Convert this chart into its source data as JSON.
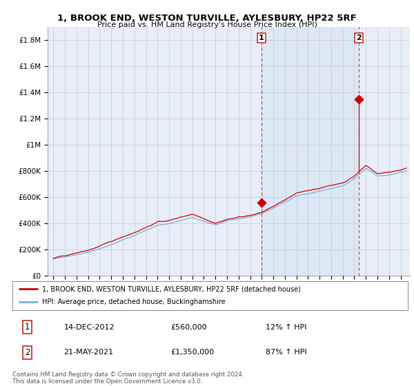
{
  "title": "1, BROOK END, WESTON TURVILLE, AYLESBURY, HP22 5RF",
  "subtitle": "Price paid vs. HM Land Registry's House Price Index (HPI)",
  "yticks": [
    0,
    200000,
    400000,
    600000,
    800000,
    1000000,
    1200000,
    1400000,
    1600000,
    1800000
  ],
  "ytick_labels": [
    "£0",
    "£200K",
    "£400K",
    "£600K",
    "£800K",
    "£1M",
    "£1.2M",
    "£1.4M",
    "£1.6M",
    "£1.8M"
  ],
  "ylim": [
    0,
    1900000
  ],
  "xlim_left": 1994.5,
  "xlim_right": 2025.8,
  "sale1_year": 2012.96,
  "sale1_price": 560000,
  "sale1_hpi_pct": "12%",
  "sale1_date": "14-DEC-2012",
  "sale2_year": 2021.37,
  "sale2_price": 1350000,
  "sale2_hpi_pct": "87%",
  "sale2_date": "21-MAY-2021",
  "legend_label1": "1, BROOK END, WESTON TURVILLE, AYLESBURY, HP22 5RF (detached house)",
  "legend_label2": "HPI: Average price, detached house, Buckinghamshire",
  "footnote": "Contains HM Land Registry data © Crown copyright and database right 2024.\nThis data is licensed under the Open Government Licence v3.0.",
  "line_color_red": "#cc0000",
  "line_color_blue": "#7dadd4",
  "marker_color": "#cc0000",
  "bg_color": "#ffffff",
  "plot_bg_color": "#e8eef8",
  "highlight_bg_color": "#dce8f5",
  "grid_color": "#c8c8c8",
  "vline_color": "#cc3333",
  "box_edge_color": "#cc3333"
}
